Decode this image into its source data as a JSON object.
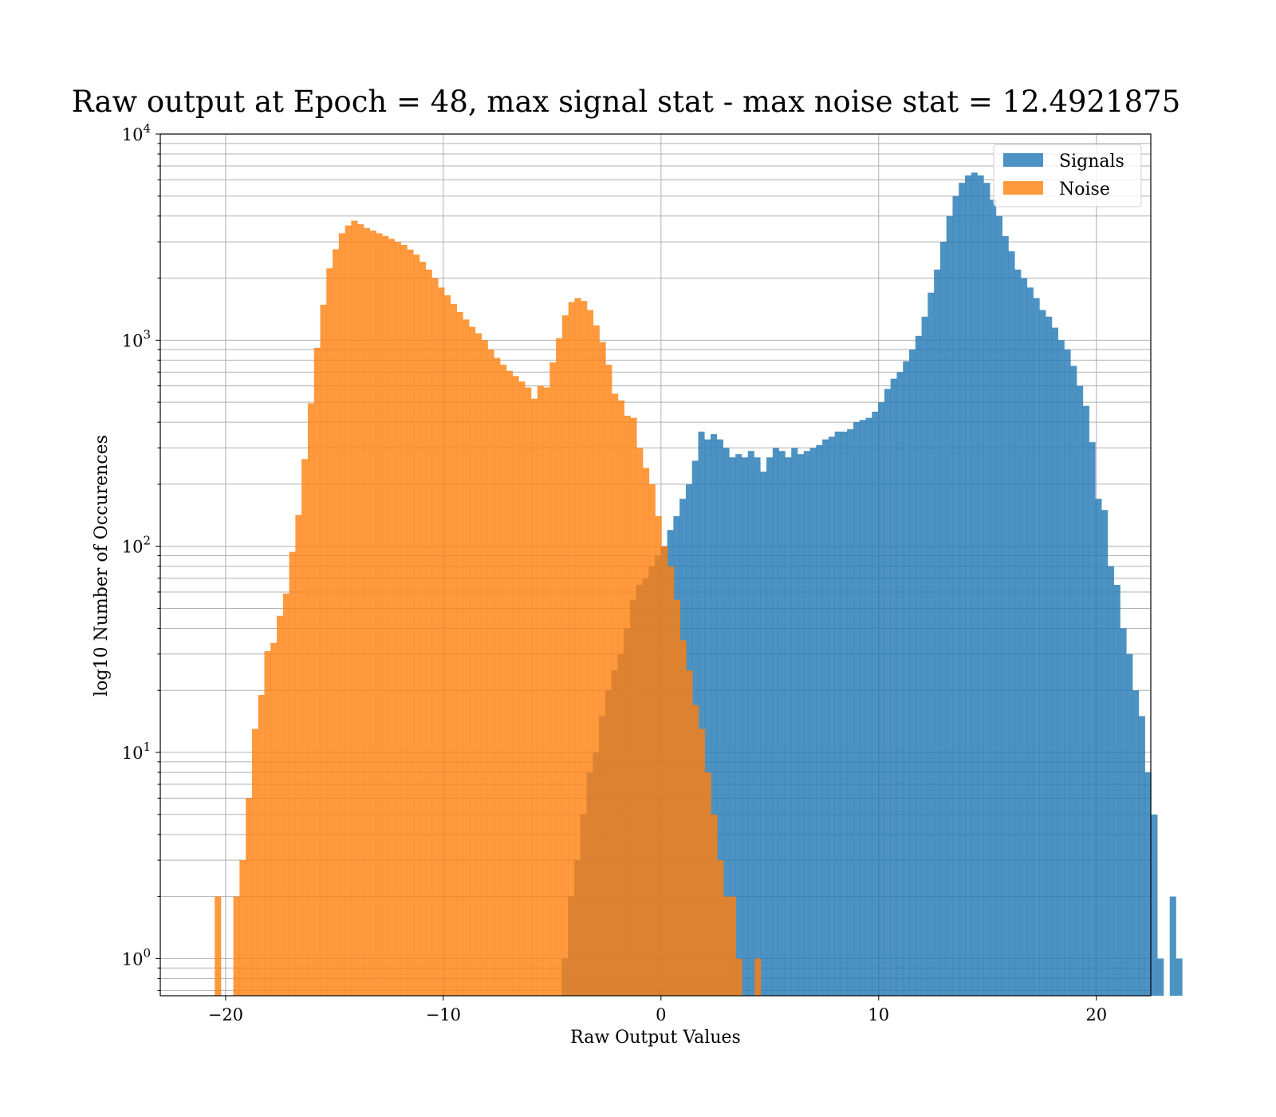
{
  "chart_data": {
    "type": "histogram",
    "title": "Raw output at Epoch = 48, max signal stat - max noise stat = 12.4921875",
    "xlabel": "Raw Output Values",
    "ylabel": "log10 Number of Occurences",
    "xlim": [
      -23,
      22.5
    ],
    "ylim": [
      0.66,
      10000
    ],
    "yscale": "log",
    "grid": true,
    "legend_position": "upper right",
    "x_ticks": [
      -20,
      -10,
      0,
      10,
      20
    ],
    "x_tick_labels": [
      "−20",
      "−10",
      "0",
      "10",
      "20"
    ],
    "y_ticks": [
      1,
      10,
      100,
      1000,
      10000
    ],
    "y_tick_labels": [
      {
        "base": "10",
        "exp": "0"
      },
      {
        "base": "10",
        "exp": "1"
      },
      {
        "base": "10",
        "exp": "2"
      },
      {
        "base": "10",
        "exp": "3"
      },
      {
        "base": "10",
        "exp": "4"
      }
    ],
    "series": [
      {
        "name": "Signals",
        "color": "#1f77b4",
        "opacity": 0.8,
        "bin_start": -4.56,
        "bin_width": 0.285,
        "counts": [
          1,
          2,
          3,
          5,
          8,
          10,
          15,
          20,
          25,
          30,
          40,
          55,
          65,
          70,
          80,
          90,
          100,
          120,
          140,
          170,
          200,
          260,
          360,
          330,
          350,
          330,
          300,
          270,
          280,
          270,
          290,
          270,
          230,
          270,
          300,
          290,
          270,
          300,
          280,
          290,
          300,
          310,
          330,
          340,
          360,
          360,
          370,
          400,
          410,
          420,
          450,
          500,
          580,
          650,
          700,
          790,
          900,
          1050,
          1300,
          1700,
          2200,
          3000,
          4000,
          5000,
          5800,
          6300,
          6500,
          6300,
          5800,
          4800,
          4000,
          3200,
          2700,
          2200,
          2000,
          1800,
          1600,
          1400,
          1300,
          1150,
          1000,
          900,
          750,
          600,
          480,
          320,
          170,
          150,
          80,
          65,
          40,
          30,
          20,
          15,
          8,
          5,
          1,
          0,
          2,
          1
        ]
      },
      {
        "name": "Noise",
        "color": "#ff7f0e",
        "opacity": 0.8,
        "bin_start": -20.5,
        "bin_width": 0.285,
        "counts": [
          2,
          0,
          0,
          2,
          3,
          6,
          13,
          19,
          31,
          34,
          46,
          59,
          94,
          142,
          265,
          494,
          918,
          1486,
          2231,
          2760,
          3300,
          3600,
          3800,
          3650,
          3500,
          3400,
          3300,
          3200,
          3100,
          3000,
          2900,
          2750,
          2600,
          2400,
          2200,
          2000,
          1800,
          1650,
          1500,
          1370,
          1260,
          1160,
          1080,
          1000,
          900,
          820,
          760,
          710,
          670,
          630,
          590,
          520,
          600,
          590,
          780,
          1020,
          1320,
          1530,
          1600,
          1550,
          1400,
          1180,
          980,
          760,
          550,
          510,
          430,
          420,
          300,
          240,
          200,
          140,
          100,
          80,
          55,
          35,
          25,
          17,
          13,
          8,
          5,
          3,
          2,
          2,
          1,
          0,
          0,
          1
        ]
      }
    ]
  }
}
